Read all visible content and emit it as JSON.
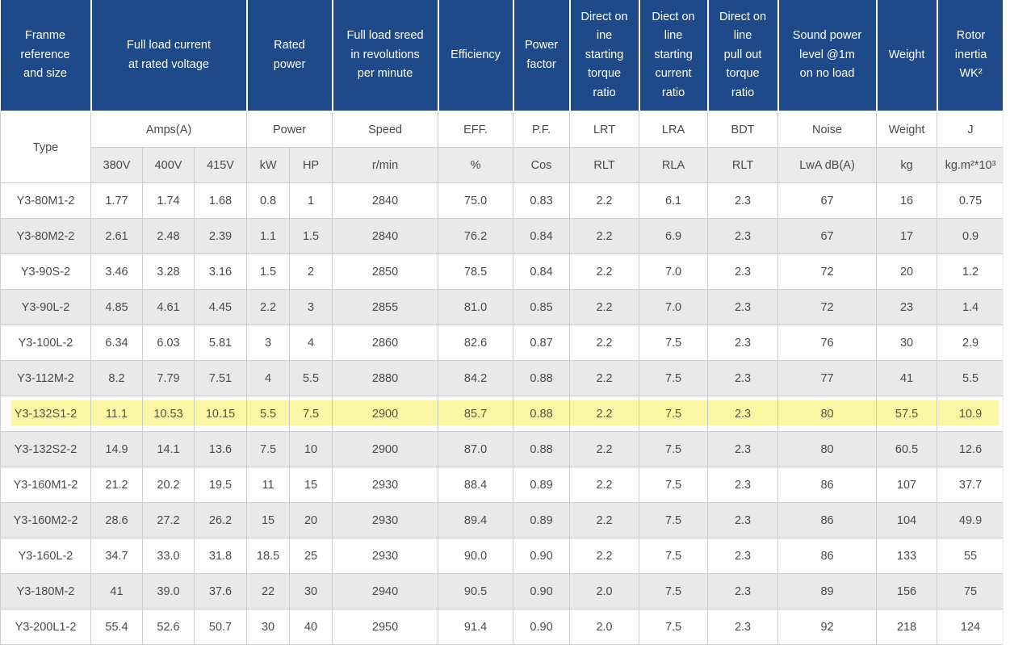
{
  "colors": {
    "header_blue": "#1e4a8a",
    "row_alt": "#e9e9e9",
    "subheader_gray": "#ebebeb",
    "highlight_yellow": "#f9f7a3",
    "border_gray": "#cccccc",
    "text_gray": "#4a4a4a",
    "header_text": "#ffffff"
  },
  "table": {
    "header_groups": [
      {
        "label": "Franme\nreference\nand size",
        "span": 1
      },
      {
        "label": "Full load current\nat rated voltage",
        "span": 3
      },
      {
        "label": "Rated\npower",
        "span": 2
      },
      {
        "label": "Full load sreed\nin revolutions\nper minute",
        "span": 1
      },
      {
        "label": "Efficiency",
        "span": 1
      },
      {
        "label": "Power\nfactor",
        "span": 1
      },
      {
        "label": "Direct on\nine\nstarting\ntorque\nratio",
        "span": 1
      },
      {
        "label": "Diect on\nline\nstarting\ncurrent\nratio",
        "span": 1
      },
      {
        "label": "Direct on\nline\npull out\ntorque\nratio",
        "span": 1
      },
      {
        "label": "Sound power\nlevel @1m\non no load",
        "span": 1
      },
      {
        "label": "Weight",
        "span": 1
      },
      {
        "label": "Rotor\ninertia\nWK²",
        "span": 1
      }
    ],
    "subheader1": [
      "Type",
      "Amps(A)",
      "Power",
      "Speed",
      "EFF.",
      "P.F.",
      "LRT",
      "LRA",
      "BDT",
      "Noise",
      "Weight",
      "J"
    ],
    "subheader2": [
      "380V",
      "400V",
      "415V",
      "kW",
      "HP",
      "r/min",
      "%",
      "Cos",
      "RLT",
      "RLA",
      "RLT",
      "LwA dB(A)",
      "kg",
      "kg.m²*10³"
    ],
    "highlighted_row_index": 6,
    "highlighted_type": "Y3-132S1-2",
    "rows": [
      {
        "type": "Y3-80M1-2",
        "values": [
          "1.77",
          "1.74",
          "1.68",
          "0.8",
          "1",
          "2840",
          "75.0",
          "0.83",
          "2.2",
          "6.1",
          "2.3",
          "67",
          "16",
          "0.75"
        ]
      },
      {
        "type": "Y3-80M2-2",
        "values": [
          "2.61",
          "2.48",
          "2.39",
          "1.1",
          "1.5",
          "2840",
          "76.2",
          "0.84",
          "2.2",
          "6.9",
          "2.3",
          "67",
          "17",
          "0.9"
        ]
      },
      {
        "type": "Y3-90S-2",
        "values": [
          "3.46",
          "3.28",
          "3.16",
          "1.5",
          "2",
          "2850",
          "78.5",
          "0.84",
          "2.2",
          "7.0",
          "2.3",
          "72",
          "20",
          "1.2"
        ]
      },
      {
        "type": "Y3-90L-2",
        "values": [
          "4.85",
          "4.61",
          "4.45",
          "2.2",
          "3",
          "2855",
          "81.0",
          "0.85",
          "2.2",
          "7.0",
          "2.3",
          "72",
          "23",
          "1.4"
        ]
      },
      {
        "type": "Y3-100L-2",
        "values": [
          "6.34",
          "6.03",
          "5.81",
          "3",
          "4",
          "2860",
          "82.6",
          "0.87",
          "2.2",
          "7.5",
          "2.3",
          "76",
          "30",
          "2.9"
        ]
      },
      {
        "type": "Y3-112M-2",
        "values": [
          "8.2",
          "7.79",
          "7.51",
          "4",
          "5.5",
          "2880",
          "84.2",
          "0.88",
          "2.2",
          "7.5",
          "2.3",
          "77",
          "41",
          "5.5"
        ]
      },
      {
        "type": "Y3-132S1-2",
        "values": [
          "11.1",
          "10.53",
          "10.15",
          "5.5",
          "7.5",
          "2900",
          "85.7",
          "0.88",
          "2.2",
          "7.5",
          "2.3",
          "80",
          "57.5",
          "10.9"
        ]
      },
      {
        "type": "Y3-132S2-2",
        "values": [
          "14.9",
          "14.1",
          "13.6",
          "7.5",
          "10",
          "2900",
          "87.0",
          "0.88",
          "2.2",
          "7.5",
          "2.3",
          "80",
          "60.5",
          "12.6"
        ]
      },
      {
        "type": "Y3-160M1-2",
        "values": [
          "21.2",
          "20.2",
          "19.5",
          "11",
          "15",
          "2930",
          "88.4",
          "0.89",
          "2.2",
          "7.5",
          "2.3",
          "86",
          "107",
          "37.7"
        ]
      },
      {
        "type": "Y3-160M2-2",
        "values": [
          "28.6",
          "27.2",
          "26.2",
          "15",
          "20",
          "2930",
          "89.4",
          "0.89",
          "2.2",
          "7.5",
          "2.3",
          "86",
          "104",
          "49.9"
        ]
      },
      {
        "type": "Y3-160L-2",
        "values": [
          "34.7",
          "33.0",
          "31.8",
          "18.5",
          "25",
          "2930",
          "90.0",
          "0.90",
          "2.2",
          "7.5",
          "2.3",
          "86",
          "133",
          "55"
        ]
      },
      {
        "type": "Y3-180M-2",
        "values": [
          "41",
          "39.0",
          "37.6",
          "22",
          "30",
          "2940",
          "90.5",
          "0.90",
          "2.0",
          "7.5",
          "2.3",
          "89",
          "156",
          "75"
        ]
      },
      {
        "type": "Y3-200L1-2",
        "values": [
          "55.4",
          "52.6",
          "50.7",
          "30",
          "40",
          "2950",
          "91.4",
          "0.90",
          "2.0",
          "7.5",
          "2.3",
          "92",
          "218",
          "124"
        ]
      }
    ]
  }
}
